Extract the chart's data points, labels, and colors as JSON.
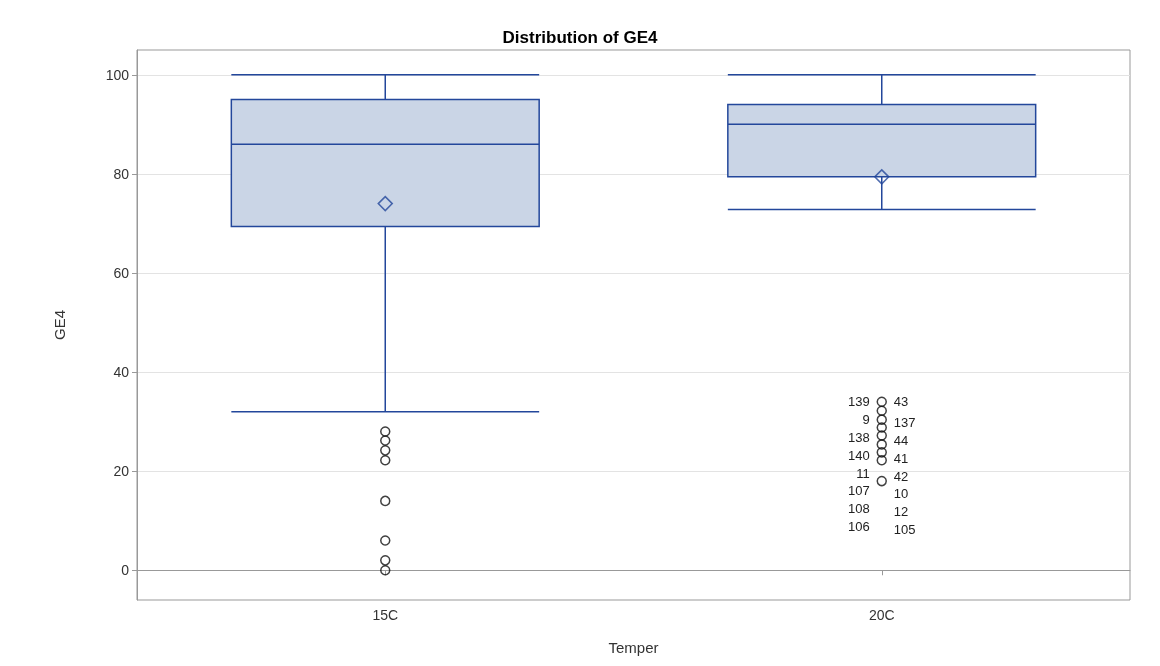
{
  "chart_data": {
    "type": "box",
    "title": "Distribution of GE4",
    "xlabel": "Temper",
    "ylabel": "GE4",
    "categories": [
      "15C",
      "20C"
    ],
    "series": [
      {
        "color": "#cad5e6",
        "boxes": [
          {
            "low": 32,
            "q1": 69.4,
            "median": 86,
            "q3": 95,
            "high": 100,
            "mean": 74,
            "outliers": [
              28,
              26.2,
              24.2,
              22.2,
              14,
              6,
              2,
              0
            ]
          },
          {
            "low": 72.8,
            "q1": 79.4,
            "median": 90,
            "q3": 94,
            "high": 100,
            "mean": 79.4,
            "outliers": [
              34,
              32.2,
              30.4,
              28.8,
              27.2,
              25.4,
              23.8,
              22.2,
              18
            ]
          }
        ]
      }
    ],
    "ylim": [
      -6,
      105
    ],
    "yticks": [
      0,
      20,
      40,
      60,
      80,
      100
    ],
    "grid": "y",
    "annotations": [
      "139",
      "43",
      "9",
      "137",
      "138",
      "44",
      "140",
      "41",
      "11",
      "42",
      "107",
      "10",
      "108",
      "12",
      "106",
      "105"
    ]
  }
}
